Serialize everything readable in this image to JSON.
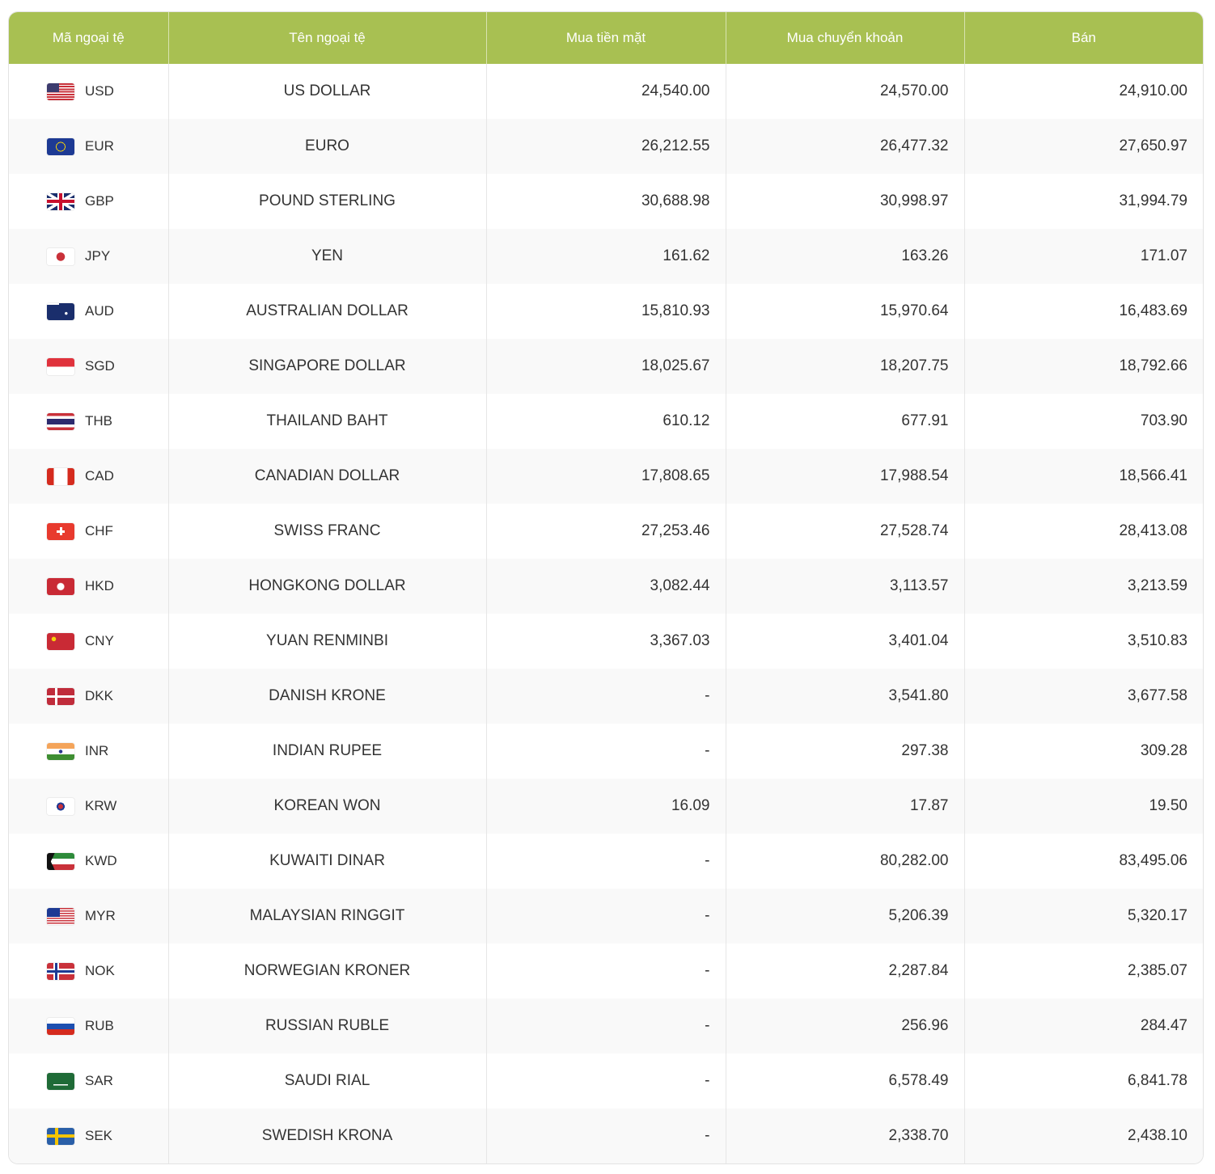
{
  "table": {
    "headers": [
      "Mã ngoại tệ",
      "Tên ngoại tệ",
      "Mua tiền mặt",
      "Mua chuyển khoản",
      "Bán"
    ],
    "header_color": "#a8c052",
    "rows": [
      {
        "code": "USD",
        "name": "US DOLLAR",
        "cash": "24,540.00",
        "transfer": "24,570.00",
        "sell": "24,910.00"
      },
      {
        "code": "EUR",
        "name": "EURO",
        "cash": "26,212.55",
        "transfer": "26,477.32",
        "sell": "27,650.97"
      },
      {
        "code": "GBP",
        "name": "POUND STERLING",
        "cash": "30,688.98",
        "transfer": "30,998.97",
        "sell": "31,994.79"
      },
      {
        "code": "JPY",
        "name": "YEN",
        "cash": "161.62",
        "transfer": "163.26",
        "sell": "171.07"
      },
      {
        "code": "AUD",
        "name": "AUSTRALIAN DOLLAR",
        "cash": "15,810.93",
        "transfer": "15,970.64",
        "sell": "16,483.69"
      },
      {
        "code": "SGD",
        "name": "SINGAPORE DOLLAR",
        "cash": "18,025.67",
        "transfer": "18,207.75",
        "sell": "18,792.66"
      },
      {
        "code": "THB",
        "name": "THAILAND BAHT",
        "cash": "610.12",
        "transfer": "677.91",
        "sell": "703.90"
      },
      {
        "code": "CAD",
        "name": "CANADIAN DOLLAR",
        "cash": "17,808.65",
        "transfer": "17,988.54",
        "sell": "18,566.41"
      },
      {
        "code": "CHF",
        "name": "SWISS FRANC",
        "cash": "27,253.46",
        "transfer": "27,528.74",
        "sell": "28,413.08"
      },
      {
        "code": "HKD",
        "name": "HONGKONG DOLLAR",
        "cash": "3,082.44",
        "transfer": "3,113.57",
        "sell": "3,213.59"
      },
      {
        "code": "CNY",
        "name": "YUAN RENMINBI",
        "cash": "3,367.03",
        "transfer": "3,401.04",
        "sell": "3,510.83"
      },
      {
        "code": "DKK",
        "name": "DANISH KRONE",
        "cash": "-",
        "transfer": "3,541.80",
        "sell": "3,677.58"
      },
      {
        "code": "INR",
        "name": "INDIAN RUPEE",
        "cash": "-",
        "transfer": "297.38",
        "sell": "309.28"
      },
      {
        "code": "KRW",
        "name": "KOREAN WON",
        "cash": "16.09",
        "transfer": "17.87",
        "sell": "19.50"
      },
      {
        "code": "KWD",
        "name": "KUWAITI DINAR",
        "cash": "-",
        "transfer": "80,282.00",
        "sell": "83,495.06"
      },
      {
        "code": "MYR",
        "name": "MALAYSIAN RINGGIT",
        "cash": "-",
        "transfer": "5,206.39",
        "sell": "5,320.17"
      },
      {
        "code": "NOK",
        "name": "NORWEGIAN KRONER",
        "cash": "-",
        "transfer": "2,287.84",
        "sell": "2,385.07"
      },
      {
        "code": "RUB",
        "name": "RUSSIAN RUBLE",
        "cash": "-",
        "transfer": "256.96",
        "sell": "284.47"
      },
      {
        "code": "SAR",
        "name": "SAUDI RIAL",
        "cash": "-",
        "transfer": "6,578.49",
        "sell": "6,841.78"
      },
      {
        "code": "SEK",
        "name": "SWEDISH KRONA",
        "cash": "-",
        "transfer": "2,338.70",
        "sell": "2,438.10"
      }
    ]
  }
}
